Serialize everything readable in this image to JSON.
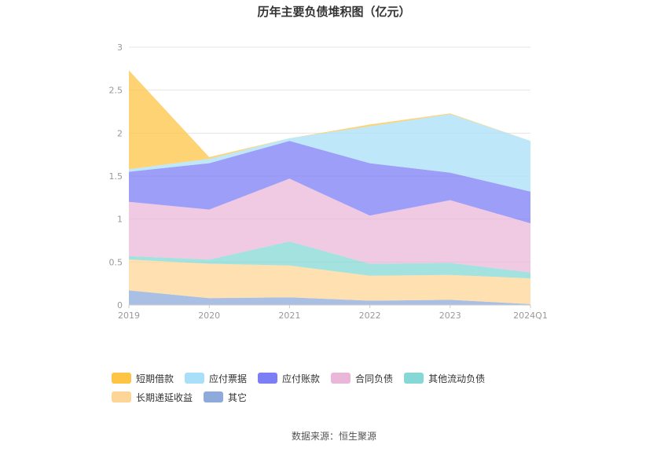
{
  "chart_data": {
    "type": "area",
    "stacked": true,
    "title": "历年主要负债堆积图（亿元）",
    "categories": [
      "2019",
      "2020",
      "2021",
      "2022",
      "2023",
      "2024Q1"
    ],
    "ylim": [
      0,
      3
    ],
    "yticks": [
      "0",
      "0.5",
      "1",
      "1.5",
      "2",
      "2.5",
      "3"
    ],
    "grid": true,
    "legend_position": "bottom-left",
    "series": [
      {
        "name": "其它",
        "color": "#8eaadb",
        "values": [
          0.17,
          0.08,
          0.09,
          0.05,
          0.06,
          0.01
        ]
      },
      {
        "name": "长期递延收益",
        "color": "#fdd597",
        "values": [
          0.36,
          0.4,
          0.37,
          0.29,
          0.29,
          0.3
        ]
      },
      {
        "name": "其他流动负债",
        "color": "#86d8d6",
        "values": [
          0.04,
          0.05,
          0.28,
          0.14,
          0.14,
          0.07
        ]
      },
      {
        "name": "合同负债",
        "color": "#ebb7d8",
        "values": [
          0.63,
          0.58,
          0.73,
          0.56,
          0.73,
          0.57
        ]
      },
      {
        "name": "应付账款",
        "color": "#7b7ef5",
        "values": [
          0.35,
          0.54,
          0.44,
          0.61,
          0.32,
          0.37
        ]
      },
      {
        "name": "应付票据",
        "color": "#a9dff8",
        "values": [
          0.03,
          0.05,
          0.03,
          0.43,
          0.68,
          0.59
        ]
      },
      {
        "name": "短期借款",
        "color": "#fdc445",
        "values": [
          1.15,
          0.02,
          0.0,
          0.02,
          0.01,
          0.0
        ]
      }
    ]
  },
  "legend_order": [
    "短期借款",
    "应付票据",
    "应付账款",
    "合同负债",
    "其他流动负债",
    "长期递延收益",
    "其它"
  ],
  "source": "数据来源：恒生聚源"
}
